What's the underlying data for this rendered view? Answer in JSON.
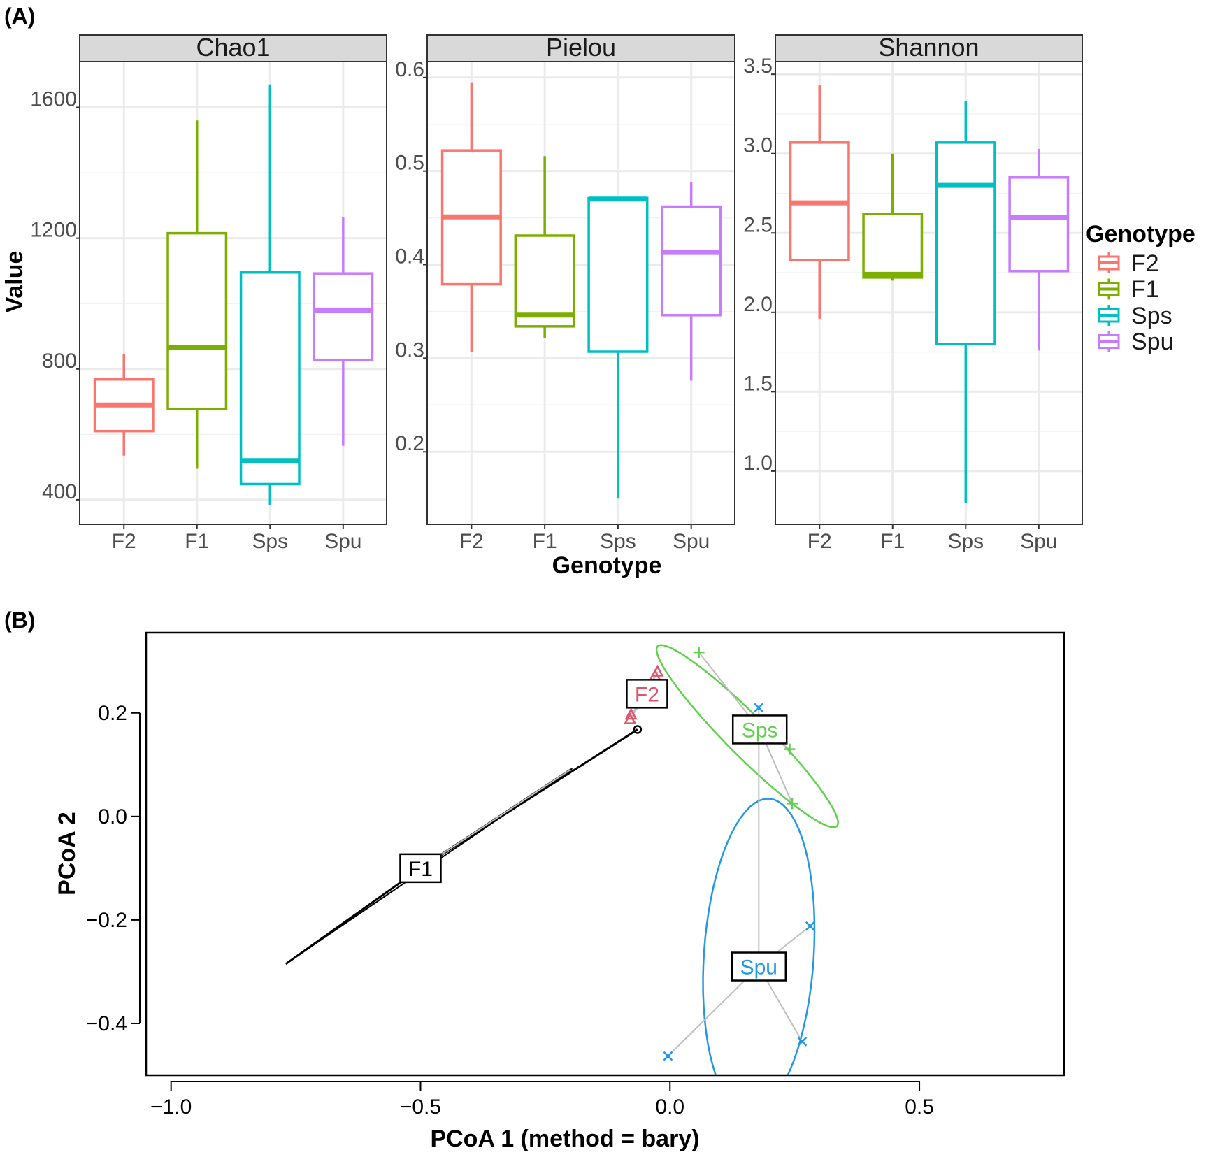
{
  "colors": {
    "F2": "#F8766D",
    "F1": "#7CAE00",
    "Sps": "#00BFC4",
    "Spu": "#C77CFF",
    "pcoa_F2": "#DF536B",
    "pcoa_F1": "#000000",
    "pcoa_Sps": "#61D04F",
    "pcoa_Spu": "#2297E6",
    "grid": "#ebebeb",
    "strip": "#d9d9d9",
    "spider": "#bebebe"
  },
  "panel_a": {
    "tag": "(A)",
    "ylabel": "Value",
    "xlabel": "Genotype",
    "legend": {
      "title": "Genotype",
      "items": [
        "F2",
        "F1",
        "Sps",
        "Spu"
      ]
    }
  },
  "panel_b": {
    "tag": "(B)"
  },
  "chart_data": [
    {
      "type": "box",
      "title": "Chao1",
      "categories": [
        "F2",
        "F1",
        "Sps",
        "Spu"
      ],
      "ylim": [
        325,
        1740
      ],
      "yticks": [
        400,
        800,
        1200,
        1600
      ],
      "ytick_labels": [
        "400",
        "800",
        "1200",
        "1600"
      ],
      "boxes": [
        {
          "group": "F2",
          "lower": 535,
          "q1": 610,
          "median": 690,
          "q3": 768,
          "upper": 845
        },
        {
          "group": "F1",
          "lower": 495,
          "q1": 678,
          "median": 865,
          "q3": 1215,
          "upper": 1560
        },
        {
          "group": "Sps",
          "lower": 385,
          "q1": 448,
          "median": 520,
          "q3": 1095,
          "upper": 1670
        },
        {
          "group": "Spu",
          "lower": 565,
          "q1": 828,
          "median": 978,
          "q3": 1092,
          "upper": 1265
        }
      ]
    },
    {
      "type": "box",
      "title": "Pielou",
      "categories": [
        "F2",
        "F1",
        "Sps",
        "Spu"
      ],
      "ylim": [
        0.1225,
        0.617
      ],
      "yticks": [
        0.2,
        0.3,
        0.4,
        0.5,
        0.6
      ],
      "ytick_labels": [
        "0.2",
        "0.3",
        "0.4",
        "0.5",
        "0.6"
      ],
      "boxes": [
        {
          "group": "F2",
          "lower": 0.307,
          "q1": 0.379,
          "median": 0.451,
          "q3": 0.522,
          "upper": 0.594
        },
        {
          "group": "F1",
          "lower": 0.322,
          "q1": 0.334,
          "median": 0.346,
          "q3": 0.431,
          "upper": 0.516
        },
        {
          "group": "Sps",
          "lower": 0.15,
          "q1": 0.307,
          "median": 0.47,
          "q3": 0.471,
          "upper": 0.472
        },
        {
          "group": "Spu",
          "lower": 0.276,
          "q1": 0.346,
          "median": 0.413,
          "q3": 0.462,
          "upper": 0.488
        }
      ]
    },
    {
      "type": "box",
      "title": "Shannon",
      "categories": [
        "F2",
        "F1",
        "Sps",
        "Spu"
      ],
      "ylim": [
        0.665,
        3.58
      ],
      "yticks": [
        1.0,
        1.5,
        2.0,
        2.5,
        3.0,
        3.5
      ],
      "ytick_labels": [
        "1.0",
        "1.5",
        "2.0",
        "2.5",
        "3.0",
        "3.5"
      ],
      "boxes": [
        {
          "group": "F2",
          "lower": 1.96,
          "q1": 2.33,
          "median": 2.69,
          "q3": 3.07,
          "upper": 3.43
        },
        {
          "group": "F1",
          "lower": 2.2,
          "q1": 2.22,
          "median": 2.24,
          "q3": 2.62,
          "upper": 3.0
        },
        {
          "group": "Sps",
          "lower": 0.8,
          "q1": 1.8,
          "median": 2.8,
          "q3": 3.07,
          "upper": 3.33
        },
        {
          "group": "Spu",
          "lower": 1.76,
          "q1": 2.26,
          "median": 2.6,
          "q3": 2.85,
          "upper": 3.03
        }
      ]
    },
    {
      "type": "scatter",
      "title": "",
      "xlabel": "PCoA 1 (method = bary)",
      "ylabel": "PCoA 2",
      "xlim": [
        -1.05,
        0.79
      ],
      "ylim": [
        -0.5,
        0.355
      ],
      "xticks": [
        -1.0,
        -0.5,
        0.0,
        0.5
      ],
      "xtick_labels": [
        "−1.0",
        "−0.5",
        "0.0",
        "0.5"
      ],
      "yticks": [
        -0.4,
        -0.2,
        0.0,
        0.2
      ],
      "ytick_labels": [
        "−0.4",
        "−0.2",
        "0.0",
        "0.2"
      ],
      "groups": [
        {
          "name": "F2",
          "marker": "triangle",
          "centroid": [
            -0.046,
            0.237
          ],
          "points": [
            [
              -0.025,
              0.28
            ],
            [
              -0.03,
              0.272
            ],
            [
              -0.078,
              0.197
            ],
            [
              -0.08,
              0.188
            ]
          ]
        },
        {
          "name": "F1",
          "marker": "circle",
          "centroid": [
            -0.5,
            -0.1
          ],
          "points": [
            [
              -0.065,
              0.168
            ],
            [
              -0.2,
              0.09
            ],
            [
              -0.77,
              -0.285
            ]
          ]
        },
        {
          "name": "Sps",
          "marker": "plus",
          "centroid": [
            0.18,
            0.168
          ],
          "points": [
            [
              0.058,
              0.317
            ],
            [
              0.24,
              0.13
            ],
            [
              0.245,
              0.025
            ]
          ],
          "ellipse": {
            "center": [
              0.155,
              0.155
            ],
            "semi_axis_a": 0.25,
            "semi_axis_b": 0.04,
            "angle_deg": -44
          }
        },
        {
          "name": "Spu",
          "marker": "cross",
          "centroid": [
            0.178,
            -0.29
          ],
          "points": [
            [
              -0.004,
              -0.463
            ],
            [
              0.281,
              -0.212
            ],
            [
              0.265,
              -0.435
            ],
            [
              0.178,
              0.21
            ]
          ],
          "ellipse": {
            "center": [
              0.178,
              -0.27
            ],
            "semi_axis_a": 0.305,
            "semi_axis_b": 0.11,
            "angle_deg": 86
          }
        }
      ]
    }
  ]
}
